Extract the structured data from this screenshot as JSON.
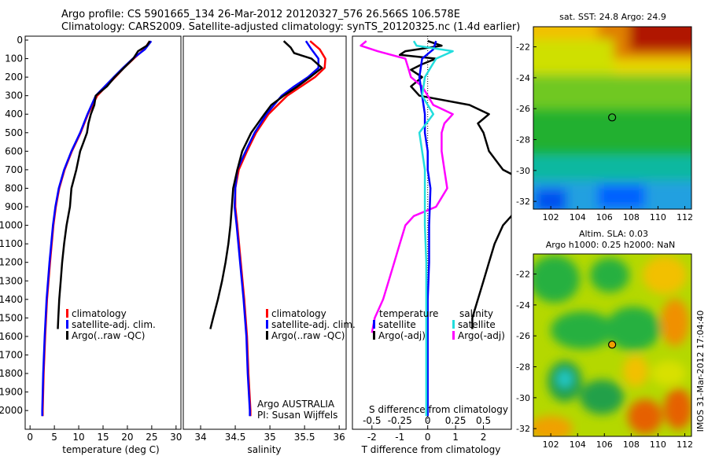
{
  "header": {
    "line1": "Argo profile: CS 5901665_134 26-Mar-2012 20120327_576 26.566S 106.578E",
    "line2": "Climatology: CARS2009. Satellite-adjusted climatology: synTS_20120325.nc (1.4d earlier)"
  },
  "right_labels": {
    "sst_title": "sat. SST: 24.8 Argo: 24.9",
    "sla_title1": "Altim. SLA: 0.03",
    "sla_title2": "Argo h1000: 0.25 h2000: NaN",
    "vertical_stamp": "IMOS 31-Mar-2012 17:04:40"
  },
  "panel_texts": {
    "argo_org": "Argo AUSTRALIA",
    "pi": "PI: Susan Wijffels",
    "diff_top_label": "S difference from climatology"
  },
  "colors": {
    "climatology": "#ff0000",
    "satellite": "#0000ff",
    "argo": "#000000",
    "temp_adj": "#ee22ee",
    "sal_sat": "#22dddd",
    "sal_adj": "#ff00ff"
  },
  "chart_data": [
    {
      "type": "line",
      "xlabel": "temperature (deg C)",
      "ylabel": "",
      "xlim": [
        -1,
        31
      ],
      "ylim": [
        2080,
        0
      ],
      "xticks": [
        0,
        5,
        10,
        15,
        20,
        25,
        30
      ],
      "yticks": [
        0,
        100,
        200,
        300,
        400,
        500,
        600,
        700,
        800,
        900,
        1000,
        1100,
        1200,
        1300,
        1400,
        1500,
        1600,
        1700,
        1800,
        1900,
        2000
      ],
      "legend": [
        "climatology",
        "satellite-adj. clim.",
        "Argo(..raw -QC)"
      ],
      "series": [
        {
          "name": "climatology",
          "depth": [
            5,
            50,
            100,
            150,
            200,
            300,
            400,
            500,
            600,
            700,
            800,
            900,
            1000,
            1200,
            1400,
            1600,
            1800,
            2000,
            2030
          ],
          "values": [
            24.6,
            23.4,
            21.3,
            19.3,
            17.5,
            13.8,
            11.9,
            10.4,
            8.6,
            7.1,
            6.0,
            5.3,
            4.8,
            4.1,
            3.5,
            3.1,
            2.8,
            2.6,
            2.6
          ]
        },
        {
          "name": "satellite-adj. clim.",
          "depth": [
            5,
            50,
            100,
            150,
            200,
            300,
            400,
            500,
            600,
            700,
            800,
            900,
            1000,
            1200,
            1400,
            1600,
            1800,
            2000,
            2030
          ],
          "values": [
            24.9,
            23.6,
            21.1,
            19.1,
            17.2,
            13.5,
            11.8,
            10.3,
            8.5,
            7.0,
            5.9,
            5.2,
            4.7,
            4.0,
            3.4,
            3.0,
            2.7,
            2.5,
            2.5
          ]
        },
        {
          "name": "Argo(..raw -QC)",
          "depth": [
            5,
            30,
            60,
            100,
            150,
            200,
            250,
            300,
            350,
            400,
            450,
            500,
            550,
            600,
            700,
            800,
            900,
            1000,
            1100,
            1200,
            1300,
            1400,
            1500,
            1560
          ],
          "values": [
            24.6,
            24.0,
            22.2,
            21.2,
            19.3,
            17.4,
            15.8,
            13.5,
            13.2,
            12.5,
            12.0,
            11.7,
            11.0,
            10.3,
            9.5,
            8.5,
            8.2,
            7.5,
            7.0,
            6.6,
            6.3,
            6.0,
            5.8,
            5.7
          ]
        }
      ]
    },
    {
      "type": "line",
      "xlabel": "salinity",
      "ylabel": "",
      "xlim": [
        33.75,
        36.1
      ],
      "xticks": [
        34,
        34.5,
        35,
        35.5,
        36
      ],
      "legend": [
        "climatology",
        "satellite-adj. clim.",
        "Argo(..raw -QC)"
      ],
      "series": [
        {
          "name": "climatology",
          "depth": [
            5,
            50,
            100,
            150,
            200,
            250,
            300,
            400,
            500,
            600,
            700,
            800,
            900,
            1000,
            1200,
            1400,
            1600,
            1800,
            2000,
            2030
          ],
          "values": [
            35.58,
            35.72,
            35.8,
            35.79,
            35.65,
            35.45,
            35.25,
            34.98,
            34.8,
            34.67,
            34.55,
            34.5,
            34.5,
            34.53,
            34.58,
            34.63,
            34.67,
            34.69,
            34.72,
            34.72
          ]
        },
        {
          "name": "satellite-adj. clim.",
          "depth": [
            5,
            50,
            100,
            150,
            200,
            250,
            300,
            400,
            500,
            600,
            700,
            800,
            900,
            1000,
            1200,
            1400,
            1600,
            1800,
            2000,
            2030
          ],
          "values": [
            35.52,
            35.6,
            35.7,
            35.7,
            35.55,
            35.35,
            35.17,
            34.95,
            34.78,
            34.65,
            34.53,
            34.5,
            34.49,
            34.52,
            34.57,
            34.62,
            34.66,
            34.68,
            34.71,
            34.71
          ]
        },
        {
          "name": "Argo(..raw -QC)",
          "depth": [
            5,
            40,
            70,
            100,
            150,
            200,
            250,
            300,
            350,
            400,
            500,
            600,
            700,
            800,
            900,
            1000,
            1100,
            1200,
            1300,
            1400,
            1500,
            1560
          ],
          "values": [
            35.2,
            35.3,
            35.35,
            35.6,
            35.75,
            35.58,
            35.4,
            35.2,
            35.02,
            34.92,
            34.73,
            34.6,
            34.53,
            34.47,
            34.45,
            34.43,
            34.4,
            34.36,
            34.31,
            34.25,
            34.18,
            34.14
          ]
        }
      ]
    },
    {
      "type": "line",
      "xlabel": "T difference from climatology",
      "xlabel_top": "S difference from climatology",
      "ylabel": "",
      "xlim": [
        -2.7,
        3.0
      ],
      "xticks": [
        -2,
        -1,
        0,
        1,
        2
      ],
      "xticks_top": [
        "-0.5",
        "-0.25",
        "0",
        "0.25",
        "0.5"
      ],
      "legend_headers": [
        "temperature",
        "salinity"
      ],
      "legend": [
        "satellite",
        "Argo(-adj)",
        "satellite",
        "Argo(-adj)"
      ],
      "series": [
        {
          "name": "satellite",
          "depth": [
            5,
            50,
            100,
            200,
            300,
            400,
            500,
            600,
            700,
            800,
            1000,
            1200,
            1400,
            1600,
            1800,
            2030
          ],
          "values": [
            0.3,
            0.2,
            -0.2,
            -0.3,
            -0.2,
            -0.1,
            -0.1,
            0.0,
            0.0,
            0.1,
            0.05,
            0.05,
            0.0,
            0.0,
            0.0,
            0.0
          ]
        },
        {
          "name": "Argo(-adj)",
          "depth": [
            5,
            30,
            60,
            80,
            100,
            130,
            160,
            200,
            250,
            300,
            350,
            400,
            450,
            500,
            600,
            700,
            800,
            900,
            950,
            1000,
            1100,
            1200,
            1300,
            1400,
            1500,
            1560
          ],
          "values": [
            0.0,
            0.5,
            -0.8,
            -1.0,
            0.3,
            -0.2,
            -0.6,
            -0.2,
            -0.6,
            -0.3,
            1.5,
            2.2,
            1.8,
            2.0,
            2.2,
            2.7,
            4.0,
            3.2,
            3.0,
            2.7,
            2.4,
            2.2,
            2.0,
            1.8,
            1.6,
            1.6
          ]
        },
        {
          "name": "satellite",
          "depth": [
            5,
            30,
            60,
            100,
            150,
            200,
            300,
            400,
            500,
            600,
            700,
            800,
            900,
            1000,
            1200,
            1400,
            1600,
            1800,
            2030
          ],
          "values": [
            -0.5,
            -0.4,
            0.9,
            0.3,
            0.1,
            -0.1,
            -0.2,
            0.2,
            -0.3,
            -0.2,
            -0.1,
            -0.1,
            -0.1,
            -0.1,
            -0.05,
            -0.05,
            -0.05,
            -0.05,
            -0.05
          ]
        },
        {
          "name": "Argo(-adj)",
          "depth": [
            5,
            30,
            60,
            100,
            150,
            200,
            250,
            300,
            350,
            400,
            450,
            500,
            600,
            700,
            800,
            900,
            950,
            1000,
            1100,
            1200,
            1300,
            1400,
            1500,
            1580
          ],
          "values": [
            -2.2,
            -2.4,
            -1.8,
            -0.8,
            -0.7,
            -0.6,
            -0.2,
            0.0,
            0.2,
            0.9,
            0.6,
            0.5,
            0.5,
            0.6,
            0.7,
            0.3,
            -0.5,
            -0.8,
            -1.0,
            -1.2,
            -1.4,
            -1.6,
            -1.9,
            -2.0
          ]
        }
      ]
    },
    {
      "type": "heatmap",
      "title": "sat. SST: 24.8 Argo: 24.9",
      "xticks": [
        102,
        104,
        106,
        108,
        110,
        112
      ],
      "yticks": [
        -22,
        -24,
        -26,
        -28,
        -30,
        -32
      ],
      "marker": {
        "lon": 106.578,
        "lat": -26.566
      }
    },
    {
      "type": "heatmap",
      "title": "Altim. SLA: 0.03",
      "subtitle": "Argo h1000: 0.25 h2000: NaN",
      "xticks": [
        102,
        104,
        106,
        108,
        110,
        112
      ],
      "yticks": [
        -22,
        -24,
        -26,
        -28,
        -30,
        -32
      ],
      "marker": {
        "lon": 106.578,
        "lat": -26.566
      }
    }
  ]
}
